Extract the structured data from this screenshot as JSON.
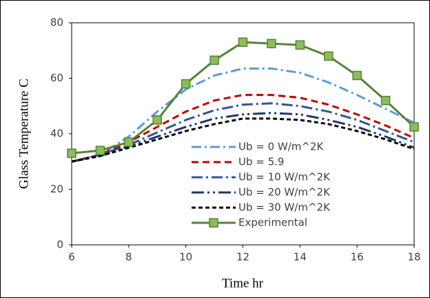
{
  "chart_data": {
    "type": "line",
    "xlabel": "Time  hr",
    "ylabel": "Glass Temperature  C",
    "x": [
      6,
      7,
      8,
      9,
      10,
      11,
      12,
      13,
      14,
      15,
      16,
      17,
      18
    ],
    "xlim": [
      6,
      18
    ],
    "xticks": [
      6,
      8,
      10,
      12,
      14,
      16,
      18
    ],
    "ylim": [
      0,
      80
    ],
    "yticks": [
      0,
      20,
      40,
      60,
      80
    ],
    "legend": "center",
    "series": [
      {
        "name": "Ub = 0 W/m^2K",
        "color": "#5b9bd5",
        "dash": "14 5 3 5",
        "values": [
          30,
          32.5,
          39,
          48,
          56,
          61,
          63.5,
          63.5,
          62,
          58.5,
          54,
          49,
          44
        ]
      },
      {
        "name": "Ub = 5.9",
        "color": "#c00000",
        "dash": "10 6",
        "values": [
          30,
          32.5,
          37,
          42.5,
          48,
          52,
          54,
          54,
          53,
          50.5,
          47,
          43,
          38.5
        ]
      },
      {
        "name": "Ub = 10 W/m^2K",
        "color": "#2f5597",
        "dash": "16 5 3 5",
        "values": [
          30,
          32.5,
          36,
          40.5,
          45,
          48.5,
          50.5,
          51,
          50,
          48,
          45,
          41,
          37
        ]
      },
      {
        "name": "Ub = 20 W/m^2K",
        "color": "#1f3864",
        "dash": "18 5 3 5 3 5",
        "values": [
          30,
          32,
          35.5,
          39,
          42.5,
          45.5,
          47,
          47.5,
          47,
          45,
          42.5,
          39,
          35
        ]
      },
      {
        "name": "Ub = 30 W/m^2K",
        "color": "#000000",
        "dash": "6 4",
        "values": [
          30,
          32,
          35,
          38,
          41,
          43.5,
          45.5,
          45.5,
          45,
          43.5,
          41,
          38,
          34.5
        ]
      },
      {
        "name": "Experimental",
        "color": "#548235",
        "marker": "square",
        "values": [
          33,
          34,
          37,
          45,
          58,
          66.5,
          73,
          72.5,
          72,
          68,
          61,
          52,
          42.5
        ]
      }
    ]
  }
}
